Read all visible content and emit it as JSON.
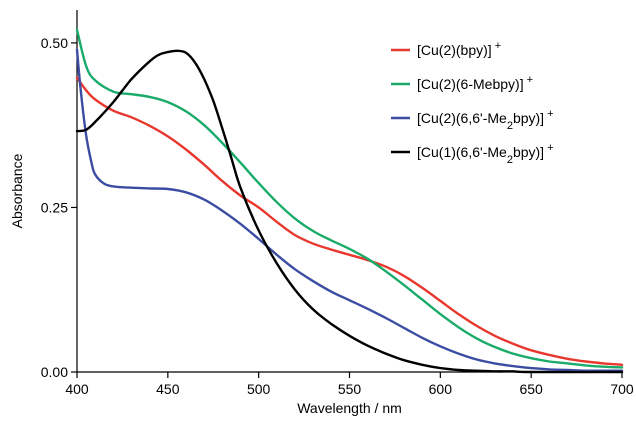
{
  "chart_data": {
    "type": "line",
    "xlabel": "Wavelength / nm",
    "ylabel": "Absorbance",
    "xlim": [
      400,
      700
    ],
    "ylim": [
      0,
      0.55
    ],
    "x_ticks": [
      "400",
      "450",
      "500",
      "550",
      "600",
      "650",
      "700"
    ],
    "y_ticks": [
      "0.00",
      "0.25",
      "0.50"
    ],
    "x_tick_values": [
      400,
      450,
      500,
      550,
      600,
      650,
      700
    ],
    "y_tick_values": [
      0,
      0.25,
      0.5
    ],
    "grid": false,
    "legend_placement": "top-right",
    "series": [
      {
        "name": "[Cu(2)(bpy)]",
        "name_parts": {
          "pre": "[Cu(2)(bpy)]",
          "sub": "",
          "post": "",
          "sup": "+"
        },
        "color": "#e8382e",
        "x": [
          400,
          405,
          410,
          420,
          430,
          440,
          450,
          460,
          470,
          480,
          490,
          500,
          510,
          520,
          530,
          540,
          550,
          560,
          570,
          580,
          590,
          600,
          610,
          620,
          630,
          640,
          650,
          660,
          670,
          680,
          690,
          700
        ],
        "y": [
          0.447,
          0.428,
          0.414,
          0.397,
          0.387,
          0.374,
          0.358,
          0.338,
          0.315,
          0.29,
          0.268,
          0.25,
          0.228,
          0.208,
          0.195,
          0.186,
          0.178,
          0.17,
          0.16,
          0.146,
          0.128,
          0.108,
          0.088,
          0.07,
          0.055,
          0.043,
          0.033,
          0.026,
          0.02,
          0.016,
          0.013,
          0.011
        ]
      },
      {
        "name": "[Cu(2)(6-Mebpy)]",
        "name_parts": {
          "pre": "[Cu(2)(6-Mebpy)]",
          "sub": "",
          "post": "",
          "sup": "+"
        },
        "color": "#1aab6b",
        "x": [
          400,
          405,
          410,
          420,
          430,
          440,
          450,
          460,
          470,
          480,
          490,
          500,
          510,
          520,
          530,
          540,
          550,
          560,
          570,
          580,
          590,
          600,
          610,
          620,
          630,
          640,
          650,
          660,
          670,
          680,
          690,
          700
        ],
        "y": [
          0.52,
          0.465,
          0.443,
          0.426,
          0.422,
          0.418,
          0.41,
          0.396,
          0.375,
          0.348,
          0.318,
          0.287,
          0.258,
          0.233,
          0.214,
          0.2,
          0.187,
          0.172,
          0.153,
          0.132,
          0.11,
          0.088,
          0.068,
          0.051,
          0.038,
          0.028,
          0.021,
          0.016,
          0.013,
          0.01,
          0.008,
          0.007
        ]
      },
      {
        "name": "[Cu(2)(6,6'-Me2bpy)]",
        "name_parts": {
          "pre": "[Cu(2)(6,6'-Me",
          "sub": "2",
          "post": "bpy)]",
          "sup": "+"
        },
        "color": "#3b4da3",
        "x": [
          400,
          402,
          405,
          408,
          410,
          415,
          420,
          430,
          440,
          450,
          460,
          470,
          480,
          490,
          500,
          510,
          520,
          530,
          540,
          550,
          560,
          570,
          580,
          590,
          600,
          610,
          620,
          630,
          640,
          650,
          660,
          670,
          680,
          690,
          700
        ],
        "y": [
          0.49,
          0.43,
          0.36,
          0.318,
          0.3,
          0.286,
          0.282,
          0.28,
          0.279,
          0.278,
          0.273,
          0.262,
          0.245,
          0.225,
          0.202,
          0.178,
          0.156,
          0.138,
          0.122,
          0.109,
          0.096,
          0.082,
          0.067,
          0.052,
          0.039,
          0.028,
          0.019,
          0.013,
          0.009,
          0.006,
          0.004,
          0.003,
          0.002,
          0.002,
          0.002
        ]
      },
      {
        "name": "[Cu(1)(6,6'-Me2bpy)]",
        "name_parts": {
          "pre": "[Cu(1)(6,6'-Me",
          "sub": "2",
          "post": "bpy)]",
          "sup": "+"
        },
        "color": "#000000",
        "x": [
          400,
          405,
          410,
          420,
          430,
          440,
          445,
          450,
          455,
          460,
          465,
          470,
          475,
          480,
          485,
          490,
          500,
          510,
          520,
          530,
          540,
          550,
          560,
          570,
          580,
          590,
          600,
          610,
          620,
          630,
          640,
          650,
          700
        ],
        "y": [
          0.366,
          0.368,
          0.38,
          0.41,
          0.445,
          0.472,
          0.482,
          0.486,
          0.488,
          0.485,
          0.47,
          0.445,
          0.412,
          0.37,
          0.325,
          0.28,
          0.215,
          0.165,
          0.125,
          0.095,
          0.073,
          0.055,
          0.04,
          0.028,
          0.018,
          0.011,
          0.006,
          0.003,
          0.002,
          0.001,
          0.001,
          0.0,
          0.0
        ]
      }
    ]
  }
}
